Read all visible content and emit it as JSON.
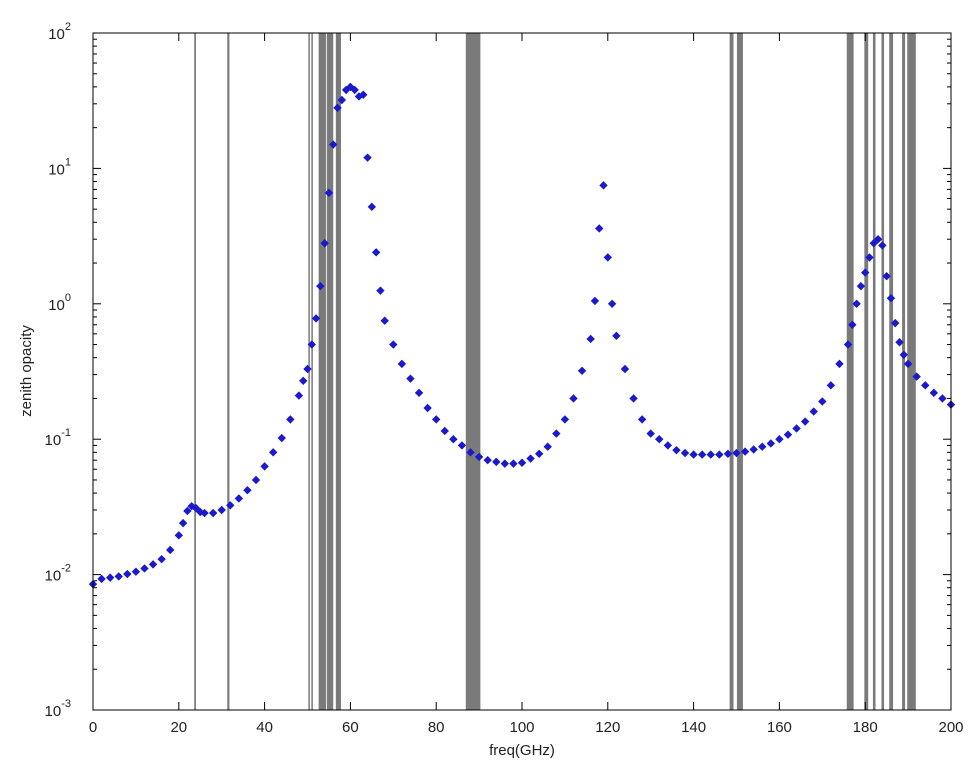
{
  "chart_data": {
    "type": "scatter",
    "title": "",
    "xlabel": "freq(GHz)",
    "ylabel": "zenith opacity",
    "xlim": [
      0,
      200
    ],
    "ylim": [
      0.001,
      100
    ],
    "yscale": "log",
    "grid": false,
    "legend": "none",
    "x_ticks": [
      "0",
      "20",
      "40",
      "60",
      "80",
      "100",
      "120",
      "140",
      "160",
      "180",
      "200"
    ],
    "x_tick_values": [
      0,
      20,
      40,
      60,
      80,
      100,
      120,
      140,
      160,
      180,
      200
    ],
    "y_ticks": [
      {
        "base": "10",
        "exp": "-3",
        "value": 0.001
      },
      {
        "base": "10",
        "exp": "-2",
        "value": 0.01
      },
      {
        "base": "10",
        "exp": "-1",
        "value": 0.1
      },
      {
        "base": "10",
        "exp": "0",
        "value": 1
      },
      {
        "base": "10",
        "exp": "1",
        "value": 10
      },
      {
        "base": "10",
        "exp": "2",
        "value": 100
      }
    ],
    "bands": [
      {
        "x0": 23.6,
        "x1": 24.0
      },
      {
        "x0": 31.3,
        "x1": 31.8
      },
      {
        "x0": 50.2,
        "x1": 50.5
      },
      {
        "x0": 50.9,
        "x1": 51.1
      },
      {
        "x0": 52.6,
        "x1": 54.3
      },
      {
        "x0": 54.5,
        "x1": 56.0
      },
      {
        "x0": 56.6,
        "x1": 57.8
      },
      {
        "x0": 86.9,
        "x1": 90.3
      },
      {
        "x0": 148.4,
        "x1": 149.3
      },
      {
        "x0": 150.1,
        "x1": 151.5
      },
      {
        "x0": 175.7,
        "x1": 177.3
      },
      {
        "x0": 179.8,
        "x1": 180.7
      },
      {
        "x0": 181.8,
        "x1": 182.4
      },
      {
        "x0": 183.8,
        "x1": 184.4
      },
      {
        "x0": 185.6,
        "x1": 186.5
      },
      {
        "x0": 188.6,
        "x1": 189.3
      },
      {
        "x0": 189.8,
        "x1": 191.8
      }
    ],
    "series": [
      {
        "color": "#1a1acc",
        "marker": "diamond",
        "points": [
          [
            0,
            0.0085
          ],
          [
            2,
            0.0093
          ],
          [
            4,
            0.0095
          ],
          [
            6,
            0.0097
          ],
          [
            8,
            0.0101
          ],
          [
            10,
            0.0105
          ],
          [
            12,
            0.0111
          ],
          [
            14,
            0.0119
          ],
          [
            16,
            0.013
          ],
          [
            18,
            0.0152
          ],
          [
            20,
            0.0195
          ],
          [
            21,
            0.024
          ],
          [
            22,
            0.0295
          ],
          [
            23,
            0.032
          ],
          [
            24,
            0.031
          ],
          [
            25,
            0.029
          ],
          [
            26,
            0.0285
          ],
          [
            28,
            0.0285
          ],
          [
            30,
            0.03
          ],
          [
            32,
            0.0325
          ],
          [
            34,
            0.0365
          ],
          [
            36,
            0.042
          ],
          [
            38,
            0.05
          ],
          [
            40,
            0.063
          ],
          [
            42,
            0.08
          ],
          [
            44,
            0.102
          ],
          [
            46,
            0.14
          ],
          [
            48,
            0.21
          ],
          [
            49,
            0.27
          ],
          [
            50,
            0.33
          ],
          [
            51,
            0.5
          ],
          [
            52,
            0.78
          ],
          [
            53,
            1.35
          ],
          [
            54,
            2.8
          ],
          [
            55,
            6.6
          ],
          [
            56,
            15
          ],
          [
            57,
            28
          ],
          [
            58,
            32
          ],
          [
            59,
            38
          ],
          [
            60,
            40
          ],
          [
            61,
            38
          ],
          [
            62,
            34
          ],
          [
            63,
            35
          ],
          [
            64,
            12
          ],
          [
            65,
            5.2
          ],
          [
            66,
            2.4
          ],
          [
            67,
            1.25
          ],
          [
            68,
            0.75
          ],
          [
            70,
            0.5
          ],
          [
            72,
            0.36
          ],
          [
            74,
            0.28
          ],
          [
            76,
            0.22
          ],
          [
            78,
            0.17
          ],
          [
            80,
            0.14
          ],
          [
            82,
            0.115
          ],
          [
            84,
            0.1
          ],
          [
            86,
            0.09
          ],
          [
            88,
            0.08
          ],
          [
            90,
            0.074
          ],
          [
            92,
            0.07
          ],
          [
            94,
            0.068
          ],
          [
            96,
            0.066
          ],
          [
            98,
            0.066
          ],
          [
            100,
            0.067
          ],
          [
            102,
            0.072
          ],
          [
            104,
            0.078
          ],
          [
            106,
            0.088
          ],
          [
            108,
            0.11
          ],
          [
            110,
            0.14
          ],
          [
            112,
            0.2
          ],
          [
            114,
            0.32
          ],
          [
            116,
            0.55
          ],
          [
            117,
            1.05
          ],
          [
            118,
            3.6
          ],
          [
            119,
            7.5
          ],
          [
            120,
            2.2
          ],
          [
            121,
            1.0
          ],
          [
            122,
            0.58
          ],
          [
            124,
            0.33
          ],
          [
            126,
            0.2
          ],
          [
            128,
            0.14
          ],
          [
            130,
            0.11
          ],
          [
            132,
            0.1
          ],
          [
            134,
            0.09
          ],
          [
            136,
            0.083
          ],
          [
            138,
            0.079
          ],
          [
            140,
            0.077
          ],
          [
            142,
            0.077
          ],
          [
            144,
            0.077
          ],
          [
            146,
            0.077
          ],
          [
            148,
            0.078
          ],
          [
            150,
            0.079
          ],
          [
            152,
            0.081
          ],
          [
            154,
            0.084
          ],
          [
            156,
            0.088
          ],
          [
            158,
            0.093
          ],
          [
            160,
            0.1
          ],
          [
            162,
            0.108
          ],
          [
            164,
            0.12
          ],
          [
            166,
            0.135
          ],
          [
            168,
            0.16
          ],
          [
            170,
            0.19
          ],
          [
            172,
            0.25
          ],
          [
            174,
            0.36
          ],
          [
            176,
            0.5
          ],
          [
            177,
            0.7
          ],
          [
            178,
            1.0
          ],
          [
            179,
            1.35
          ],
          [
            180,
            1.7
          ],
          [
            181,
            2.2
          ],
          [
            182,
            2.8
          ],
          [
            183,
            3.0
          ],
          [
            184,
            2.7
          ],
          [
            185,
            1.6
          ],
          [
            186,
            1.1
          ],
          [
            187,
            0.72
          ],
          [
            188,
            0.52
          ],
          [
            189,
            0.42
          ],
          [
            190,
            0.36
          ],
          [
            192,
            0.29
          ],
          [
            194,
            0.25
          ],
          [
            196,
            0.22
          ],
          [
            198,
            0.2
          ],
          [
            200,
            0.18
          ]
        ]
      }
    ]
  }
}
